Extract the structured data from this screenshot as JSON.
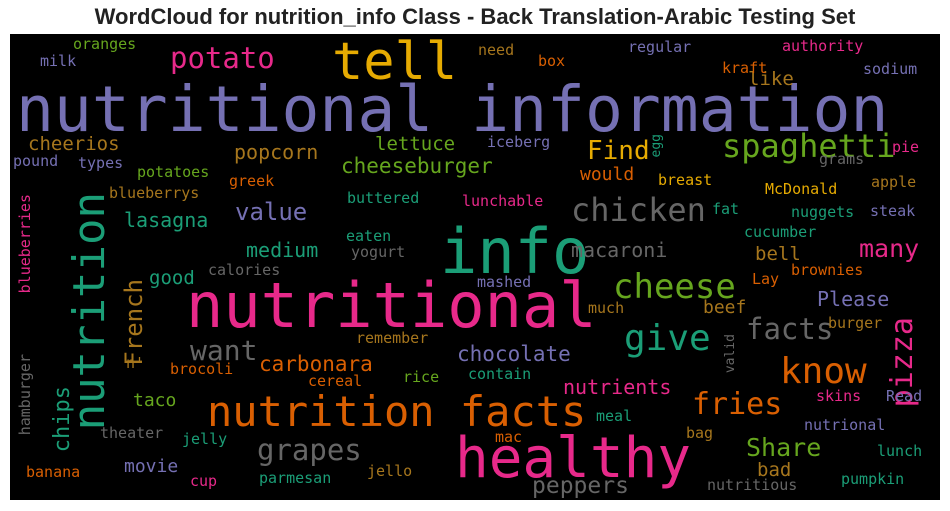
{
  "title": "WordCloud for nutrition_info Class - Back Translation-Arabic Testing Set",
  "colors": {
    "purple": "#7570b3",
    "teal": "#1b9e77",
    "pink": "#e7298a",
    "orange": "#d95f02",
    "green": "#66a61e",
    "gold": "#e6ab02",
    "brown": "#a6761d",
    "gray": "#666666"
  },
  "words": {
    "nutritional_information": "nutritional information",
    "info": "info",
    "nutritional": "nutritional",
    "healthy": "healthy",
    "nutrition_facts": "nutrition facts",
    "tell": "tell",
    "nutrition": "nutrition",
    "chicken": "chicken",
    "spaghetti": "spaghetti",
    "cheese": "cheese",
    "give": "give",
    "know": "know",
    "potato": "potato",
    "french": "French",
    "pizza": "pizza",
    "fries": "fries",
    "grapes": "grapes",
    "facts": "facts",
    "want": "want",
    "find": "Find",
    "many": "many",
    "share": "Share",
    "peppers": "peppers",
    "value": "value",
    "chocolate": "chocolate",
    "cheeseburger": "cheeseburger",
    "macaroni": "macaroni",
    "carbonara": "carbonara",
    "chips": "chips",
    "popcorn": "popcorn",
    "lasagna": "lasagna",
    "cheerios": "cheerios",
    "medium": "medium",
    "lettuce": "lettuce",
    "nutrients": "nutrients",
    "please": "Please",
    "like": "like",
    "bell": "bell",
    "beef": "beef",
    "good": "good",
    "movie": "movie",
    "bad": "bad",
    "taco": "taco",
    "would": "would",
    "blueberries": "blueberries",
    "hamburger": "hamburger",
    "oranges": "oranges",
    "milk": "milk",
    "need": "need",
    "box": "box",
    "regular": "regular",
    "authority": "authority",
    "kraft": "kraft",
    "sodium": "sodium",
    "iceberg": "iceberg",
    "egg": "egg",
    "pound": "pound",
    "types": "types",
    "potatoes": "potatoes",
    "greek": "greek",
    "blueberrys": "blueberrys",
    "breast": "breast",
    "grams": "grams",
    "pie": "pie",
    "apple": "apple",
    "mcdonald": "McDonald",
    "buttered": "buttered",
    "lunchable": "lunchable",
    "fat": "fat",
    "nuggets": "nuggets",
    "steak": "steak",
    "eaten": "eaten",
    "yogurt": "yogurt",
    "cucumber": "cucumber",
    "calories": "calories",
    "lay": "Lay",
    "brownies": "brownies",
    "mashed": "mashed",
    "much": "much",
    "burger": "burger",
    "remember": "remember",
    "valid": "valid",
    "n": "n'",
    "brocoli": "brocoli",
    "cereal": "cereal",
    "rice": "rice",
    "contain": "contain",
    "skins": "skins",
    "read": "Read",
    "meal": "meal",
    "nutrional": "nutrional",
    "theater": "theater",
    "jelly": "jelly",
    "mac": "mac",
    "bag": "bag",
    "lunch": "lunch",
    "banana": "banana",
    "cup": "cup",
    "jello": "jello",
    "parmesan": "parmesan",
    "nutritious": "nutritious",
    "pumpkin": "pumpkin"
  }
}
